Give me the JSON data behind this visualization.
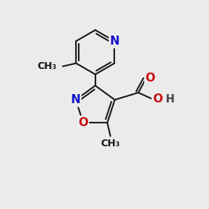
{
  "background_color": "#ebebeb",
  "bond_color": "#1a1a1a",
  "bond_width": 1.6,
  "atom_colors": {
    "C": "#1a1a1a",
    "N": "#1010cc",
    "O": "#cc1010",
    "H": "#444444"
  },
  "font_size": 12,
  "font_size_label": 11
}
